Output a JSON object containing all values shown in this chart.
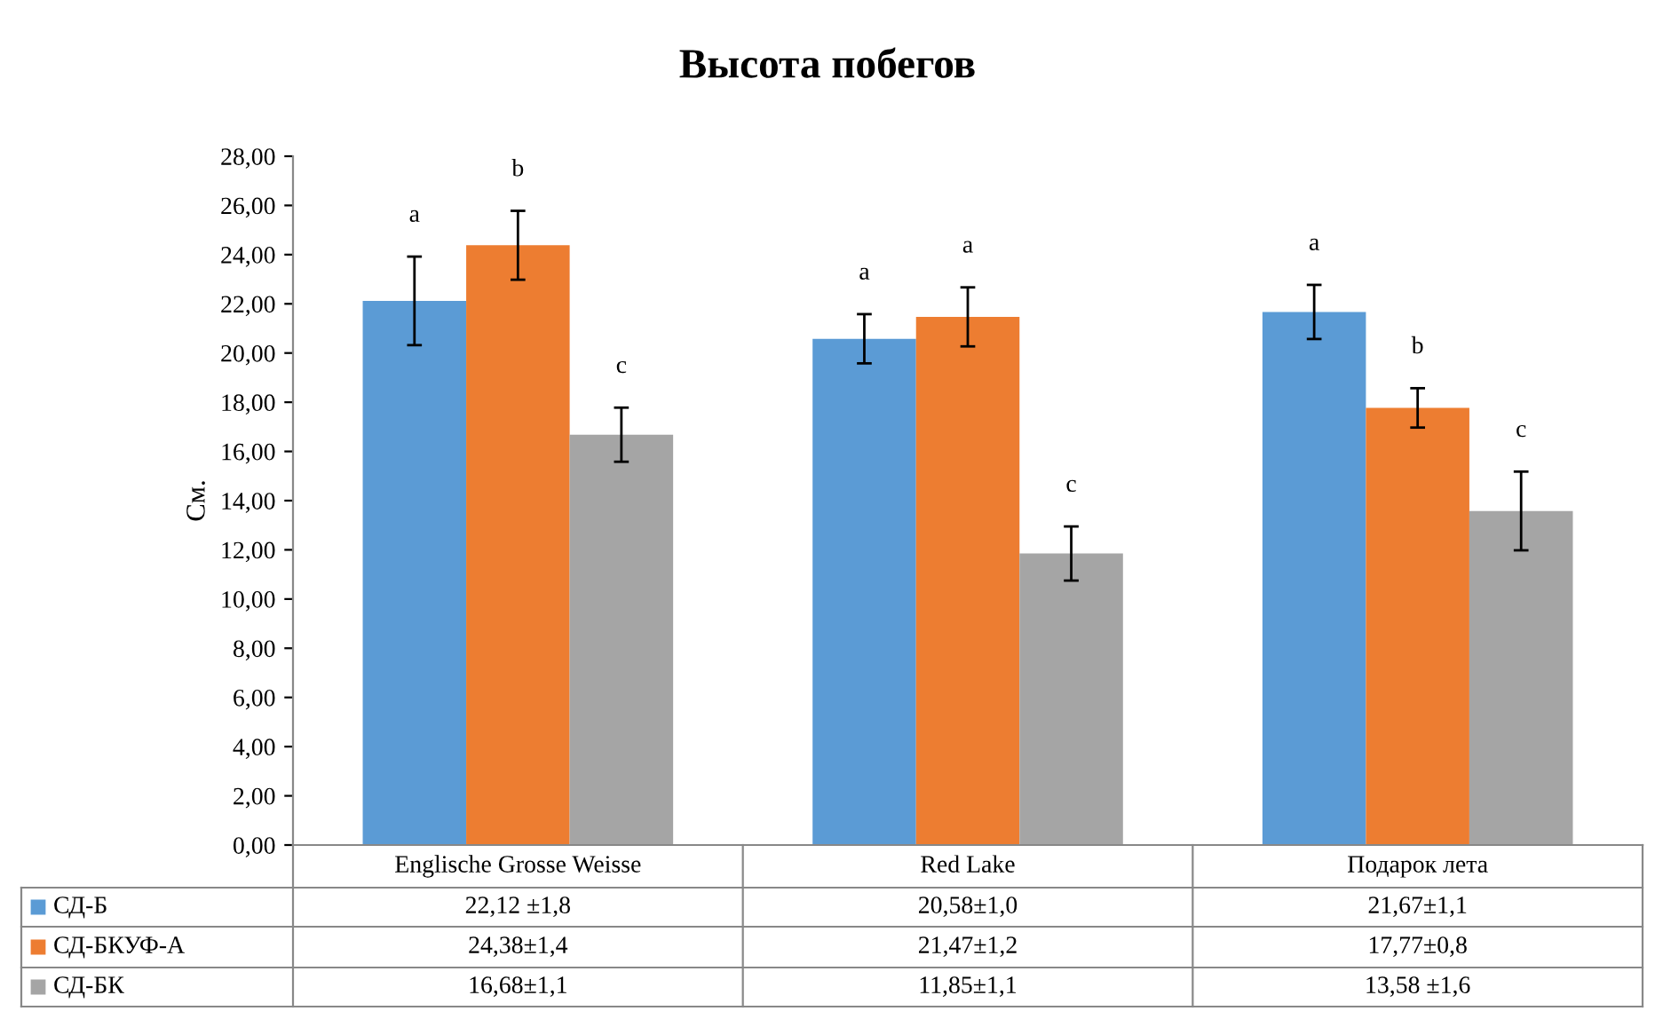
{
  "chart_data": {
    "type": "bar",
    "title": "Высота побегов",
    "ylabel": "См.",
    "categories": [
      "Englische Grosse Weisse",
      "Red Lake",
      "Подарок лета"
    ],
    "series": [
      {
        "name": "СД-Б",
        "color": "#5b9bd5",
        "values": [
          22.12,
          20.58,
          21.67
        ],
        "errors": [
          1.8,
          1.0,
          1.1
        ],
        "value_labels": [
          "22,12 ±1,8",
          "20,58±1,0",
          "21,67±1,1"
        ]
      },
      {
        "name": "СД-БКУФ-А",
        "color": "#ed7d31",
        "values": [
          24.38,
          21.47,
          17.77
        ],
        "errors": [
          1.4,
          1.2,
          0.8
        ],
        "value_labels": [
          "24,38±1,4",
          "21,47±1,2",
          "17,77±0,8"
        ]
      },
      {
        "name": "СД-БК",
        "color": "#a5a5a5",
        "values": [
          16.68,
          11.85,
          13.58
        ],
        "errors": [
          1.1,
          1.1,
          1.6
        ],
        "value_labels": [
          "16,68±1,1",
          "11,85±1,1",
          "13,58 ±1,6"
        ]
      }
    ],
    "ylim": [
      0,
      28
    ],
    "yticks": [
      {
        "value": 0,
        "label": "0,00"
      },
      {
        "value": 2,
        "label": "2,00"
      },
      {
        "value": 4,
        "label": "4,00"
      },
      {
        "value": 6,
        "label": "6,00"
      },
      {
        "value": 8,
        "label": "8,00"
      },
      {
        "value": 10,
        "label": "10,00"
      },
      {
        "value": 12,
        "label": "12,00"
      },
      {
        "value": 14,
        "label": "14,00"
      },
      {
        "value": 16,
        "label": "16,00"
      },
      {
        "value": 18,
        "label": "18,00"
      },
      {
        "value": 20,
        "label": "20,00"
      },
      {
        "value": 22,
        "label": "22,00"
      },
      {
        "value": 24,
        "label": "24,00"
      },
      {
        "value": 26,
        "label": "26,00"
      },
      {
        "value": 28,
        "label": "28,00"
      }
    ],
    "annotations": [
      "a",
      "b",
      "c",
      "a",
      "a",
      "c",
      "a",
      "b",
      "c"
    ],
    "legend": "bottom left",
    "grid": false
  }
}
